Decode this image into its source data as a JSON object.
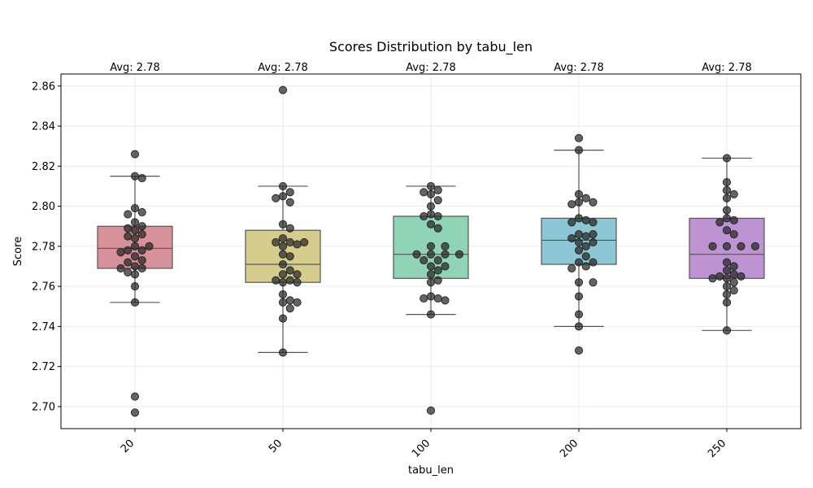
{
  "chart_data": {
    "type": "box",
    "title": "Scores Distribution by tabu_len",
    "xlabel": "tabu_len",
    "ylabel": "Score",
    "categories": [
      "20",
      "50",
      "100",
      "200",
      "250"
    ],
    "ylim": [
      2.689,
      2.866
    ],
    "yticks": [
      2.7,
      2.72,
      2.74,
      2.76,
      2.78,
      2.8,
      2.82,
      2.84,
      2.86
    ],
    "grid": true,
    "annotations": [
      "Avg: 2.78",
      "Avg: 2.78",
      "Avg: 2.78",
      "Avg: 2.78",
      "Avg: 2.78"
    ],
    "colors": [
      "#d7919b",
      "#d5cc8e",
      "#91d3b6",
      "#8dc6d4",
      "#be93d2"
    ],
    "boxes": [
      {
        "q1": 2.769,
        "median": 2.779,
        "q3": 2.79,
        "whislo": 2.752,
        "whishi": 2.815
      },
      {
        "q1": 2.762,
        "median": 2.771,
        "q3": 2.788,
        "whislo": 2.727,
        "whishi": 2.81
      },
      {
        "q1": 2.764,
        "median": 2.776,
        "q3": 2.795,
        "whislo": 2.746,
        "whishi": 2.81
      },
      {
        "q1": 2.771,
        "median": 2.783,
        "q3": 2.794,
        "whislo": 2.74,
        "whishi": 2.828
      },
      {
        "q1": 2.764,
        "median": 2.776,
        "q3": 2.794,
        "whislo": 2.738,
        "whishi": 2.824
      }
    ],
    "points": [
      [
        2.826,
        2.815,
        2.814,
        2.799,
        2.797,
        2.796,
        2.792,
        2.79,
        2.788,
        2.789,
        2.786,
        2.785,
        2.784,
        2.78,
        2.78,
        2.778,
        2.778,
        2.777,
        2.775,
        2.773,
        2.772,
        2.77,
        2.769,
        2.769,
        2.767,
        2.766,
        2.76,
        2.752,
        2.705,
        2.697
      ],
      [
        2.858,
        2.81,
        2.807,
        2.805,
        2.804,
        2.802,
        2.791,
        2.789,
        2.784,
        2.782,
        2.782,
        2.782,
        2.781,
        2.78,
        2.776,
        2.775,
        2.771,
        2.768,
        2.766,
        2.766,
        2.763,
        2.763,
        2.762,
        2.762,
        2.756,
        2.753,
        2.752,
        2.752,
        2.749,
        2.744,
        2.727
      ],
      [
        2.81,
        2.808,
        2.807,
        2.806,
        2.803,
        2.8,
        2.796,
        2.795,
        2.795,
        2.791,
        2.789,
        2.78,
        2.78,
        2.776,
        2.776,
        2.776,
        2.776,
        2.773,
        2.773,
        2.77,
        2.77,
        2.768,
        2.766,
        2.763,
        2.762,
        2.755,
        2.754,
        2.754,
        2.753,
        2.746,
        2.698
      ],
      [
        2.834,
        2.828,
        2.806,
        2.804,
        2.802,
        2.802,
        2.801,
        2.794,
        2.793,
        2.792,
        2.792,
        2.786,
        2.786,
        2.785,
        2.784,
        2.782,
        2.782,
        2.78,
        2.778,
        2.775,
        2.772,
        2.772,
        2.77,
        2.769,
        2.762,
        2.762,
        2.755,
        2.746,
        2.74,
        2.728
      ],
      [
        2.824,
        2.812,
        2.808,
        2.806,
        2.804,
        2.798,
        2.794,
        2.793,
        2.792,
        2.788,
        2.786,
        2.78,
        2.78,
        2.78,
        2.78,
        2.772,
        2.77,
        2.768,
        2.766,
        2.765,
        2.765,
        2.764,
        2.764,
        2.762,
        2.76,
        2.758,
        2.756,
        2.752,
        2.738
      ]
    ]
  }
}
